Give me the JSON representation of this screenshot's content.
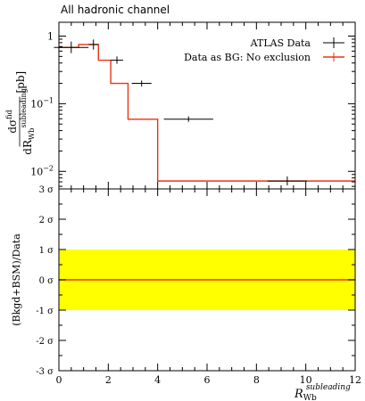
{
  "chart_data": {
    "title": "All hadronic channel",
    "top_panel": {
      "type": "step",
      "ylabel_main": "dσ",
      "ylabel_main_sup": "fid",
      "ylabel_den": "dR",
      "ylabel_den_sub": "Wb",
      "ylabel_den_sup": "subleading",
      "ylabel_unit": "[pb]",
      "yscale": "log",
      "ylim": [
        0.0055,
        1.6
      ],
      "yticks_major": [
        {
          "value": 0.01,
          "label": "10",
          "exp": "−2"
        },
        {
          "value": 0.1,
          "label": "10",
          "exp": "−1"
        },
        {
          "value": 1,
          "label": "1",
          "exp": ""
        }
      ],
      "legend_position": "top-right",
      "series": [
        {
          "name": "ATLAS Data",
          "color": "#000000",
          "points": [
            {
              "x": 0.5,
              "xerr": 0.7,
              "y": 0.68,
              "ylo": 0.56,
              "yhi": 0.83
            },
            {
              "x": 1.4,
              "xerr": 0.2,
              "y": 0.75,
              "ylo": 0.63,
              "yhi": 0.89
            },
            {
              "x": 2.35,
              "xerr": 0.25,
              "y": 0.44,
              "ylo": 0.39,
              "yhi": 0.5
            },
            {
              "x": 3.35,
              "xerr": 0.4,
              "y": 0.2,
              "ylo": 0.18,
              "yhi": 0.22
            },
            {
              "x": 5.25,
              "xerr": 1.0,
              "y": 0.059,
              "ylo": 0.054,
              "yhi": 0.065
            },
            {
              "x": 9.25,
              "xerr": 0.8,
              "y": 0.0072,
              "ylo": 0.0062,
              "yhi": 0.0084
            }
          ]
        },
        {
          "name": "Data as BG: No exclusion",
          "color": "#ee3311",
          "edges": [
            0,
            0.8,
            1.6,
            2.1,
            2.8,
            4.0,
            6.5,
            12
          ],
          "values": [
            0.68,
            0.75,
            0.44,
            0.2,
            0.059,
            0.0072,
            0.0072
          ]
        }
      ]
    },
    "ratio_panel": {
      "ylabel": "(Bkgd+BSM)/Data",
      "ylim": [
        -3,
        3
      ],
      "yticks": [
        {
          "value": 3,
          "label": "3 σ"
        },
        {
          "value": 2,
          "label": "2 σ"
        },
        {
          "value": 1,
          "label": "1 σ"
        },
        {
          "value": 0,
          "label": "0 σ"
        },
        {
          "value": -1,
          "label": "-1 σ"
        },
        {
          "value": -2,
          "label": "-2 σ"
        },
        {
          "value": -3,
          "label": "-3 σ"
        }
      ],
      "band": {
        "from": -1,
        "to": 1,
        "color": "#ffff00"
      },
      "line": {
        "value": 0,
        "color": "#ee3311"
      }
    },
    "x_axis": {
      "xlabel": "R",
      "xlabel_sub": "Wb",
      "xlabel_sup": "subleading",
      "xlim": [
        0,
        12
      ],
      "xticks": [
        0,
        2,
        4,
        6,
        8,
        10,
        12
      ]
    }
  }
}
